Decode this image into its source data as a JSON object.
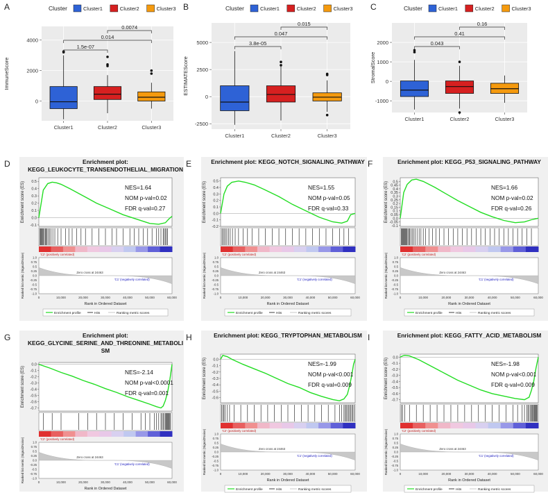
{
  "chart_data": {
    "box_panels": [
      {
        "letter": "A",
        "ylabel": "ImmuneScore",
        "legend_title": "Cluster",
        "legend_items": [
          "Cluster1",
          "Cluster2",
          "Cluster3"
        ],
        "colors": [
          "#2e62d6",
          "#d62020",
          "#f59a0e"
        ],
        "categories": [
          "Cluster1",
          "Cluster2",
          "Cluster3"
        ],
        "ylim": [
          -1300,
          4900
        ],
        "yticks": [
          0,
          2000,
          4000
        ],
        "boxes": [
          {
            "min": -1200,
            "q1": -500,
            "med": -50,
            "q3": 950,
            "max": 3000,
            "outliers": [
              3200,
              3250
            ]
          },
          {
            "min": -800,
            "q1": 100,
            "med": 450,
            "q3": 950,
            "max": 1700,
            "outliers": [
              2300,
              2400,
              2900
            ]
          },
          {
            "min": -500,
            "q1": 0,
            "med": 250,
            "q3": 600,
            "max": 1200,
            "outliers": [
              1800,
              2000
            ]
          }
        ],
        "brackets": [
          {
            "label": "1.5e-07",
            "from": 0,
            "to": 1,
            "level": 0
          },
          {
            "label": "0.014",
            "from": 0,
            "to": 2,
            "level": 1
          },
          {
            "label": "0.0074",
            "from": 1,
            "to": 2,
            "level": 2
          }
        ]
      },
      {
        "letter": "B",
        "ylabel": "ESTIMATEScore",
        "legend_title": "Cluster",
        "legend_items": [
          "Cluster1",
          "Cluster2",
          "Cluster3"
        ],
        "colors": [
          "#2e62d6",
          "#d62020",
          "#f59a0e"
        ],
        "categories": [
          "Cluster1",
          "Cluster2",
          "Cluster3"
        ],
        "ylim": [
          -3000,
          6800
        ],
        "yticks": [
          -2500,
          0,
          2500,
          5000
        ],
        "boxes": [
          {
            "min": -2600,
            "q1": -1300,
            "med": -500,
            "q3": 1000,
            "max": 4200,
            "outliers": []
          },
          {
            "min": -2200,
            "q1": -500,
            "med": 200,
            "q3": 1000,
            "max": 2800,
            "outliers": [
              2900,
              3200
            ]
          },
          {
            "min": -1400,
            "q1": -400,
            "med": -50,
            "q3": 350,
            "max": 1500,
            "outliers": [
              -1700,
              2000,
              2100
            ]
          }
        ],
        "brackets": [
          {
            "label": "3.8e-05",
            "from": 0,
            "to": 1,
            "level": 0
          },
          {
            "label": "0.047",
            "from": 0,
            "to": 2,
            "level": 1
          },
          {
            "label": "0.015",
            "from": 1,
            "to": 2,
            "level": 2
          }
        ]
      },
      {
        "letter": "C",
        "ylabel": "StromalScore",
        "legend_title": "Cluster",
        "legend_items": [
          "Cluster1",
          "Cluster2",
          "Cluster3"
        ],
        "colors": [
          "#2e62d6",
          "#d62020",
          "#f59a0e"
        ],
        "categories": [
          "Cluster1",
          "Cluster2",
          "Cluster3"
        ],
        "ylim": [
          -1600,
          3000
        ],
        "yticks": [
          -1000,
          0,
          1000,
          2000
        ],
        "boxes": [
          {
            "min": -1450,
            "q1": -780,
            "med": -450,
            "q3": 20,
            "max": 1100,
            "outliers": [
              1500,
              1600
            ]
          },
          {
            "min": -1400,
            "q1": -620,
            "med": -270,
            "q3": 20,
            "max": 800,
            "outliers": [
              1000,
              -1600
            ]
          },
          {
            "min": -1100,
            "q1": -620,
            "med": -380,
            "q3": -100,
            "max": 300,
            "outliers": []
          }
        ],
        "brackets": [
          {
            "label": "0.043",
            "from": 0,
            "to": 1,
            "level": 0
          },
          {
            "label": "0.41",
            "from": 0,
            "to": 2,
            "level": 1
          },
          {
            "label": "0.16",
            "from": 1,
            "to": 2,
            "level": 2
          }
        ]
      }
    ],
    "gsea_panels": [
      {
        "letter": "D",
        "title_lines": [
          "Enrichment plot:",
          "KEGG_LEUKOCYTE_TRANSENDOTHELIAL_MIGRATION"
        ],
        "nes": "NES=1.64",
        "pval": "NOM p-val=0.02",
        "fdr": "FDR q-val=0.27",
        "yticks": [
          0.5,
          0.4,
          0.3,
          0.2,
          0.1,
          0.0,
          -0.1
        ],
        "ylim": [
          -0.12,
          0.55
        ],
        "es_x": [
          0,
          2,
          4,
          6,
          8,
          10,
          14,
          20,
          26,
          32,
          38,
          44,
          50,
          54,
          57,
          58.5,
          60
        ],
        "es_y": [
          0.0,
          0.38,
          0.47,
          0.49,
          0.48,
          0.46,
          0.4,
          0.3,
          0.2,
          0.12,
          0.04,
          -0.02,
          -0.08,
          -0.09,
          -0.07,
          -0.02,
          0.02
        ],
        "hits_x": [
          0.5,
          0.8,
          1.1,
          1.4,
          1.8,
          2.1,
          2.5,
          2.9,
          3.3,
          3.7,
          4.2,
          4.8,
          5.5,
          6.3,
          7.2,
          8.5,
          10,
          12,
          13.5,
          15,
          17,
          19,
          21,
          24,
          27,
          30,
          33,
          35,
          38,
          41,
          43,
          45,
          47,
          49,
          51,
          53,
          54,
          55,
          56,
          56.5,
          57,
          57.5,
          58
        ]
      },
      {
        "letter": "E",
        "title_lines": [
          "Enrichment plot: KEGG_NOTCH_SIGNALING_PATHWAY"
        ],
        "nes": "NES=1.55",
        "pval": "NOM p-val=0.05",
        "fdr": "FDR q-val=0.33",
        "yticks": [
          0.5,
          0.4,
          0.3,
          0.2,
          0.1,
          0.0,
          -0.1,
          -0.2
        ],
        "ylim": [
          -0.2,
          0.55
        ],
        "es_x": [
          0,
          1.5,
          3,
          5,
          8,
          11,
          15,
          20,
          26,
          32,
          38,
          44,
          50,
          54,
          56.5,
          58,
          60
        ],
        "es_y": [
          0.0,
          0.3,
          0.42,
          0.48,
          0.5,
          0.48,
          0.44,
          0.36,
          0.26,
          0.14,
          0.04,
          -0.06,
          -0.13,
          -0.15,
          -0.12,
          -0.02,
          0.0
        ],
        "hits_x": [
          0.6,
          1.1,
          1.6,
          2.2,
          2.8,
          3.5,
          4.3,
          5.3,
          6.5,
          8,
          10,
          12,
          14,
          17,
          20,
          23,
          26,
          29,
          32,
          35,
          38,
          41,
          44,
          47,
          50,
          53,
          55,
          57
        ]
      },
      {
        "letter": "F",
        "title_lines": [
          "Enrichment plot: KEGG_P53_SIGNALING_PATHWAY"
        ],
        "nes": "NES=1.66",
        "pval": "NOM p-val=0.02",
        "fdr": "FDR q-val=0.26",
        "yticks": [
          0.5,
          0.45,
          0.4,
          0.35,
          0.3,
          0.25,
          0.2,
          0.15,
          0.1,
          0.05,
          0.0,
          -0.05,
          -0.1
        ],
        "ylim": [
          -0.11,
          0.55
        ],
        "es_x": [
          0,
          1.5,
          3,
          5,
          7,
          10,
          15,
          20,
          25,
          30,
          35,
          40,
          45,
          50,
          54,
          57,
          60
        ],
        "es_y": [
          0.0,
          0.35,
          0.46,
          0.52,
          0.53,
          0.5,
          0.42,
          0.33,
          0.24,
          0.16,
          0.08,
          0.02,
          -0.03,
          -0.06,
          -0.05,
          -0.02,
          0.0
        ],
        "hits_x": [
          0.4,
          0.7,
          1,
          1.3,
          1.6,
          1.9,
          2.2,
          2.5,
          2.9,
          3.3,
          3.7,
          4.1,
          4.6,
          5.2,
          5.8,
          6.5,
          7.3,
          8.2,
          9,
          10,
          11,
          12.5,
          14,
          15.5,
          17,
          19,
          21,
          23,
          25,
          27,
          29,
          31,
          33,
          35,
          37,
          39,
          41,
          43,
          45,
          47,
          49,
          51,
          53,
          55,
          57
        ]
      },
      {
        "letter": "G",
        "title_lines": [
          "Enrichment plot:",
          "KEGG_GLYCINE_SERINE_AND_THREONINE_METABOLI",
          "SM"
        ],
        "nes": "NES=-2.14",
        "pval": "NOM p-val<0.0001",
        "fdr": "FDR q-val=0.001",
        "yticks": [
          0.0,
          -0.1,
          -0.2,
          -0.3,
          -0.4,
          -0.5,
          -0.6,
          -0.7
        ],
        "ylim": [
          -0.75,
          0.03
        ],
        "es_x": [
          0,
          5,
          10,
          15,
          20,
          25,
          30,
          35,
          40,
          45,
          50,
          53,
          55,
          56,
          57,
          58,
          59,
          60
        ],
        "es_y": [
          0.0,
          -0.06,
          -0.13,
          -0.19,
          -0.26,
          -0.32,
          -0.39,
          -0.45,
          -0.52,
          -0.58,
          -0.64,
          -0.68,
          -0.7,
          -0.67,
          -0.58,
          -0.45,
          -0.25,
          0.0
        ],
        "hits_x": [
          2,
          6,
          10,
          18,
          22,
          26,
          30,
          34,
          38,
          42,
          46,
          48,
          50,
          52,
          53,
          54,
          55,
          55.5,
          56,
          56.5,
          57,
          57.3,
          57.6,
          58,
          58.3,
          58.6,
          59,
          59.3
        ]
      },
      {
        "letter": "H",
        "title_lines": [
          "Enrichment plot: KEGG_TRYPTOPHAN_METABOLISM"
        ],
        "nes": "NES=-1.99",
        "pval": "NOM p-val<0.001",
        "fdr": "FDR q-val=0.009",
        "yticks": [
          0.0,
          -0.1,
          -0.2,
          -0.3,
          -0.4,
          -0.5,
          -0.6
        ],
        "ylim": [
          -0.68,
          0.08
        ],
        "es_x": [
          0,
          1,
          3,
          5,
          10,
          15,
          20,
          25,
          30,
          35,
          40,
          45,
          50,
          53,
          55,
          56.5,
          57.5,
          58.5,
          59.3,
          60
        ],
        "es_y": [
          0.0,
          0.06,
          0.04,
          0.0,
          -0.08,
          -0.15,
          -0.22,
          -0.3,
          -0.38,
          -0.44,
          -0.52,
          -0.58,
          -0.63,
          -0.65,
          -0.62,
          -0.55,
          -0.42,
          -0.25,
          -0.08,
          0.0
        ],
        "hits_x": [
          0.5,
          1,
          1.5,
          2,
          3,
          4,
          6,
          9,
          12,
          15,
          18,
          21,
          24,
          27,
          30,
          33,
          36,
          39,
          42,
          45,
          48,
          51,
          53,
          54,
          55,
          55.5,
          56,
          56.5,
          57,
          57.5,
          58,
          58.5,
          59,
          59.5
        ]
      },
      {
        "letter": "I",
        "title_lines": [
          "Enrichment plot: KEGG_FATTY_ACID_METABOLISM"
        ],
        "nes": "NES=-1.98",
        "pval": "NOM p-val<0.001",
        "fdr": "FDR q-val=0.009",
        "yticks": [
          0.0,
          -0.1,
          -0.2,
          -0.3,
          -0.4,
          -0.5,
          -0.6,
          -0.7
        ],
        "ylim": [
          -0.75,
          0.05
        ],
        "es_x": [
          0,
          1,
          2,
          4,
          8,
          12,
          16,
          20,
          25,
          30,
          35,
          40,
          45,
          50,
          54,
          56,
          57,
          58,
          59,
          60
        ],
        "es_y": [
          0.0,
          0.02,
          0.03,
          0.02,
          -0.04,
          -0.12,
          -0.2,
          -0.28,
          -0.38,
          -0.46,
          -0.54,
          -0.6,
          -0.64,
          -0.68,
          -0.7,
          -0.66,
          -0.55,
          -0.4,
          -0.18,
          0.0
        ],
        "hits_x": [
          0.5,
          1,
          2,
          4,
          7,
          10,
          13,
          16,
          19,
          22,
          25,
          28,
          31,
          34,
          37,
          40,
          43,
          46,
          49,
          51,
          53,
          54,
          55,
          55.5,
          56,
          56.5,
          57,
          57.3,
          57.6,
          58,
          58.3,
          58.6,
          59,
          59.3,
          59.6
        ]
      }
    ],
    "gsea_common": {
      "rank_ylabel": "Ranked list metric (Signal2Noise)",
      "es_ylabel": "Enrichment score (ES)",
      "xlabel": "Rank in Ordered Dataset",
      "xticks": [
        "0",
        "10,000",
        "20,000",
        "30,000",
        "40,000",
        "50,000",
        "60,000"
      ],
      "rank_yticks": [
        "1.0",
        "0.75",
        "0.5",
        "0.25",
        "0.0",
        "-0.25",
        "-0.5",
        "-0.75",
        "-1.0"
      ],
      "zero_cross": "Zero cross at 24463",
      "pos_label": "'C2' (positively correlated)",
      "neg_label": "'C1' (negatively correlated)",
      "legend": [
        "Enrichment profile",
        "Hits",
        "Ranking metric scores"
      ],
      "curve_color": "#22dd22"
    }
  }
}
